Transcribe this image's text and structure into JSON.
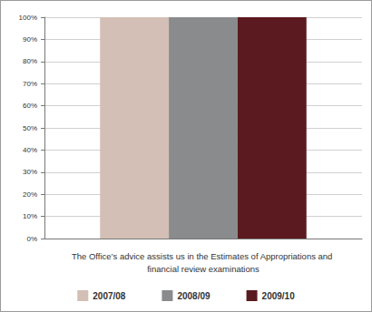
{
  "chart_data": {
    "type": "bar",
    "categories": [
      "The Office’s advice assists us in the Estimates of Appropriations and financial review examinations"
    ],
    "series": [
      {
        "name": "2007/08",
        "color": "#d3bfb5",
        "values": [
          100
        ]
      },
      {
        "name": "2008/09",
        "color": "#898b8d",
        "values": [
          100
        ]
      },
      {
        "name": "2009/10",
        "color": "#5a1a1f",
        "values": [
          100
        ]
      }
    ],
    "ylim": [
      0,
      100
    ],
    "yticks": [
      {
        "value": 0,
        "label": "0%"
      },
      {
        "value": 10,
        "label": "10%"
      },
      {
        "value": 20,
        "label": "20%"
      },
      {
        "value": 30,
        "label": "30%"
      },
      {
        "value": 40,
        "label": "40%"
      },
      {
        "value": 50,
        "label": "50%"
      },
      {
        "value": 60,
        "label": "60%"
      },
      {
        "value": 70,
        "label": "70%"
      },
      {
        "value": 80,
        "label": "80%"
      },
      {
        "value": 90,
        "label": "90%"
      },
      {
        "value": 100,
        "label": "100%"
      }
    ],
    "grid": true,
    "legend": "bottom"
  }
}
